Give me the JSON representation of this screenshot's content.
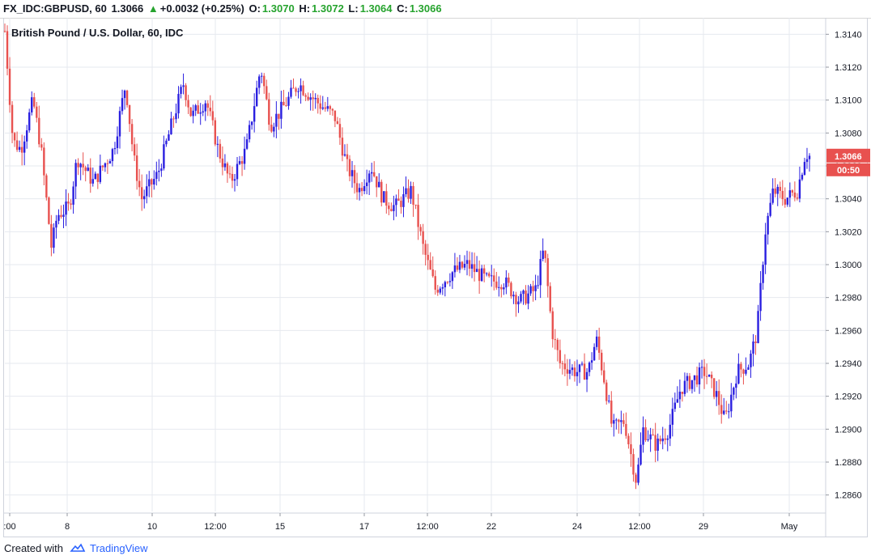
{
  "header": {
    "symbol_label": "FX_IDC:GBPUSD, 60",
    "last": "1.3066",
    "change_arrow": "▲",
    "change": "+0.0032 (+0.25%)",
    "o_label": "O:",
    "o_value": "1.3070",
    "h_label": "H:",
    "h_value": "1.3072",
    "l_label": "L:",
    "l_value": "1.3064",
    "c_label": "C:",
    "c_value": "1.3066"
  },
  "footer": {
    "created_with": "Created with",
    "brand": "TradingView",
    "logo_icon": "tradingview-cloud-icon"
  },
  "colors": {
    "up": "#2a1fe0",
    "down": "#e8514f",
    "grid": "#e6e9ef",
    "badge": "#e8514f"
  },
  "chart_data": {
    "type": "candlestick",
    "title": "British Pound / U.S. Dollar, 60, IDC",
    "ylim": [
      1.285,
      1.315
    ],
    "y_ticks": [
      "1.3140",
      "1.3120",
      "1.3100",
      "1.3080",
      "1.3060",
      "1.3040",
      "1.3020",
      "1.3000",
      "1.2980",
      "1.2960",
      "1.2940",
      "1.2920",
      "1.2900",
      "1.2880",
      "1.2860"
    ],
    "x_ticks": [
      ":00",
      "8",
      "10",
      "12:00",
      "15",
      "17",
      "12:00",
      "22",
      "24",
      "12:00",
      "29",
      "May"
    ],
    "grid": true,
    "last_price": "1.3066",
    "countdown": "00:50",
    "path": [
      {
        "x": 0.0,
        "y": 1.3142
      },
      {
        "x": 0.01,
        "y": 1.3075
      },
      {
        "x": 0.02,
        "y": 1.307
      },
      {
        "x": 0.035,
        "y": 1.31
      },
      {
        "x": 0.045,
        "y": 1.307
      },
      {
        "x": 0.058,
        "y": 1.301
      },
      {
        "x": 0.065,
        "y": 1.303
      },
      {
        "x": 0.08,
        "y": 1.3035
      },
      {
        "x": 0.09,
        "y": 1.3065
      },
      {
        "x": 0.11,
        "y": 1.305
      },
      {
        "x": 0.135,
        "y": 1.307
      },
      {
        "x": 0.15,
        "y": 1.311
      },
      {
        "x": 0.16,
        "y": 1.3065
      },
      {
        "x": 0.17,
        "y": 1.304
      },
      {
        "x": 0.19,
        "y": 1.3055
      },
      {
        "x": 0.21,
        "y": 1.309
      },
      {
        "x": 0.222,
        "y": 1.311
      },
      {
        "x": 0.232,
        "y": 1.309
      },
      {
        "x": 0.25,
        "y": 1.31
      },
      {
        "x": 0.265,
        "y": 1.307
      },
      {
        "x": 0.28,
        "y": 1.305
      },
      {
        "x": 0.3,
        "y": 1.307
      },
      {
        "x": 0.318,
        "y": 1.312
      },
      {
        "x": 0.33,
        "y": 1.3085
      },
      {
        "x": 0.345,
        "y": 1.3095
      },
      {
        "x": 0.365,
        "y": 1.311
      },
      {
        "x": 0.385,
        "y": 1.31
      },
      {
        "x": 0.41,
        "y": 1.309
      },
      {
        "x": 0.425,
        "y": 1.306
      },
      {
        "x": 0.44,
        "y": 1.3045
      },
      {
        "x": 0.455,
        "y": 1.306
      },
      {
        "x": 0.47,
        "y": 1.304
      },
      {
        "x": 0.485,
        "y": 1.3035
      },
      {
        "x": 0.505,
        "y": 1.3045
      },
      {
        "x": 0.52,
        "y": 1.301
      },
      {
        "x": 0.535,
        "y": 1.2985
      },
      {
        "x": 0.555,
        "y": 1.2995
      },
      {
        "x": 0.575,
        "y": 1.3
      },
      {
        "x": 0.6,
        "y": 1.299
      },
      {
        "x": 0.62,
        "y": 1.299
      },
      {
        "x": 0.64,
        "y": 1.2978
      },
      {
        "x": 0.66,
        "y": 1.2985
      },
      {
        "x": 0.67,
        "y": 1.301
      },
      {
        "x": 0.68,
        "y": 1.296
      },
      {
        "x": 0.69,
        "y": 1.294
      },
      {
        "x": 0.71,
        "y": 1.2935
      },
      {
        "x": 0.725,
        "y": 1.2935
      },
      {
        "x": 0.735,
        "y": 1.2955
      },
      {
        "x": 0.745,
        "y": 1.293
      },
      {
        "x": 0.755,
        "y": 1.29
      },
      {
        "x": 0.77,
        "y": 1.2905
      },
      {
        "x": 0.778,
        "y": 1.2885
      },
      {
        "x": 0.785,
        "y": 1.2868
      },
      {
        "x": 0.793,
        "y": 1.29
      },
      {
        "x": 0.81,
        "y": 1.289
      },
      {
        "x": 0.825,
        "y": 1.29
      },
      {
        "x": 0.84,
        "y": 1.2925
      },
      {
        "x": 0.855,
        "y": 1.293
      },
      {
        "x": 0.87,
        "y": 1.2935
      },
      {
        "x": 0.885,
        "y": 1.292
      },
      {
        "x": 0.895,
        "y": 1.2905
      },
      {
        "x": 0.91,
        "y": 1.2935
      },
      {
        "x": 0.925,
        "y": 1.294
      },
      {
        "x": 0.935,
        "y": 1.296
      },
      {
        "x": 0.945,
        "y": 1.302
      },
      {
        "x": 0.955,
        "y": 1.3045
      },
      {
        "x": 0.97,
        "y": 1.304
      },
      {
        "x": 0.985,
        "y": 1.3045
      },
      {
        "x": 0.995,
        "y": 1.3068
      },
      {
        "x": 1.0,
        "y": 1.3066
      }
    ]
  }
}
